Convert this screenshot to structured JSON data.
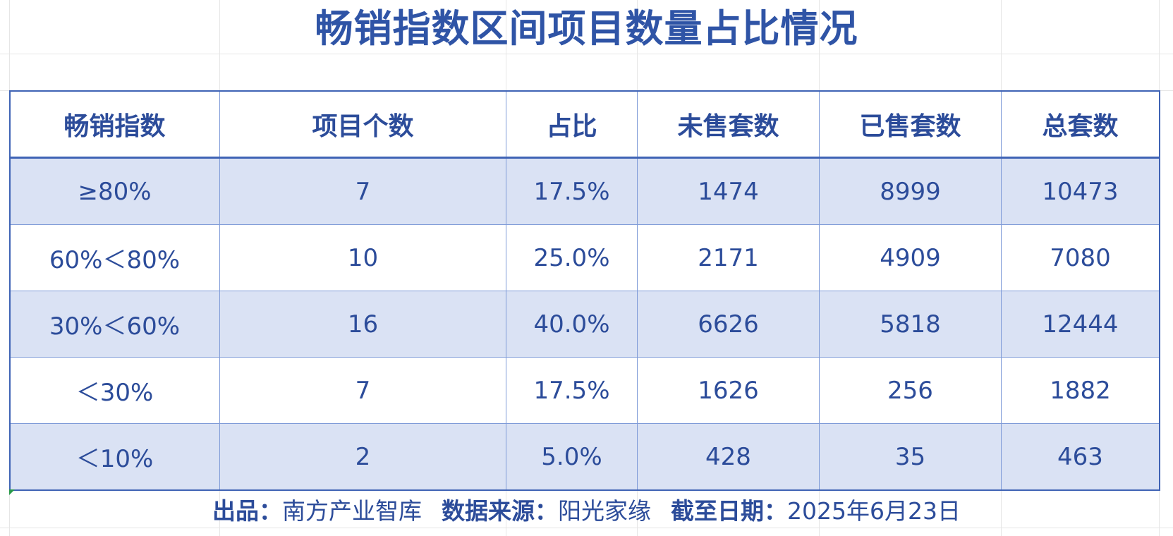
{
  "title": "畅销指数区间项目数量占比情况",
  "table": {
    "headers": [
      "畅销指数",
      "项目个数",
      "占比",
      "未售套数",
      "已售套数",
      "总套数"
    ],
    "rows": [
      [
        "≥80%",
        "7",
        "17.5%",
        "1474",
        "8999",
        "10473"
      ],
      [
        "60%＜80%",
        "10",
        "25.0%",
        "2171",
        "4909",
        "7080"
      ],
      [
        "30%＜60%",
        "16",
        "40.0%",
        "6626",
        "5818",
        "12444"
      ],
      [
        "＜30%",
        "7",
        "17.5%",
        "1626",
        "256",
        "1882"
      ],
      [
        "＜10%",
        "2",
        "5.0%",
        "428",
        "35",
        "463"
      ]
    ]
  },
  "footer": {
    "producer_label": "出品：",
    "producer_value": "南方产业智库",
    "source_label": "数据来源：",
    "source_value": "阳光家缘",
    "date_label": "截至日期：",
    "date_value": "2025年6月23日"
  },
  "colors": {
    "accent": "#2f54a6",
    "shaded_row": "#dae2f4",
    "border": "#7f9bd8"
  }
}
